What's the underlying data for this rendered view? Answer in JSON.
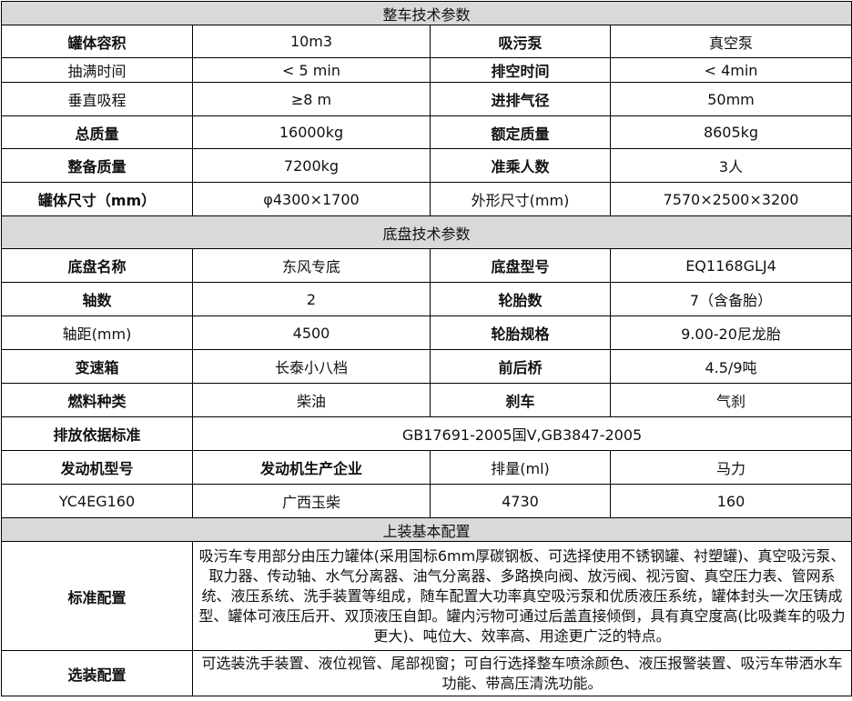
{
  "section1": {
    "title": "整车技术参数",
    "rows": [
      [
        "罐体容积",
        "10m3",
        "吸污泵",
        "真空泵"
      ],
      [
        "抽满时间",
        "< 5 min",
        "排空时间",
        "< 4min"
      ],
      [
        "垂直吸程",
        "≥8 m",
        "进排气径",
        "50mm"
      ],
      [
        "总质量",
        "16000kg",
        "额定质量",
        "8605kg"
      ],
      [
        "整备质量",
        "7200kg",
        "准乘人数",
        "3人"
      ],
      [
        "罐体尺寸（mm）",
        "φ4300×1700",
        "外形尺寸(mm)",
        "7570×2500×3200"
      ]
    ]
  },
  "section2": {
    "title": "底盘技术参数",
    "rows": [
      [
        "底盘名称",
        "东风专底",
        "底盘型号",
        "EQ1168GLJ4"
      ],
      [
        "轴数",
        "2",
        "轮胎数",
        "7（含备胎）"
      ],
      [
        "轴距(mm)",
        "4500",
        "轮胎规格",
        "9.00-20尼龙胎"
      ],
      [
        "变速箱",
        "长泰小八档",
        "前后桥",
        "4.5/9吨"
      ],
      [
        "燃料种类",
        "柴油",
        "刹车",
        "气刹"
      ]
    ],
    "emission_label": "排放依据标准",
    "emission_value": "GB17691-2005国Ⅴ,GB3847-2005",
    "engine_headers": [
      "发动机型号",
      "发动机生产企业",
      "排量(ml)",
      "马力"
    ],
    "engine_values": [
      "YC4EG160",
      "广西玉柴",
      "4730",
      "160"
    ]
  },
  "section3": {
    "title": "上装基本配置",
    "standard_label": "标准配置",
    "standard_text": "吸污车专用部分由压力罐体(采用国标6mm厚碳钢板、可选择使用不锈钢罐、衬塑罐)、真空吸污泵、取力器、传动轴、水气分离器、油气分离器、多路换向阀、放污阀、视污窗、真空压力表、管网系统、液压系统、洗手装置等组成，随车配置大功率真空吸污泵和优质液压系统，罐体封头一次压铸成型、罐体可液压后开、双顶液压自卸。罐内污物可通过后盖直接倾倒，具有真空度高(比吸粪车的吸力更大)、吨位大、效率高、用途更广泛的特点。",
    "optional_label": "选装配置",
    "optional_text": "可选装洗手装置、液位视管、尾部视窗；可自行选择整车喷涂颜色、液压报警装置、吸污车带洒水车功能、带高压清洗功能。"
  }
}
